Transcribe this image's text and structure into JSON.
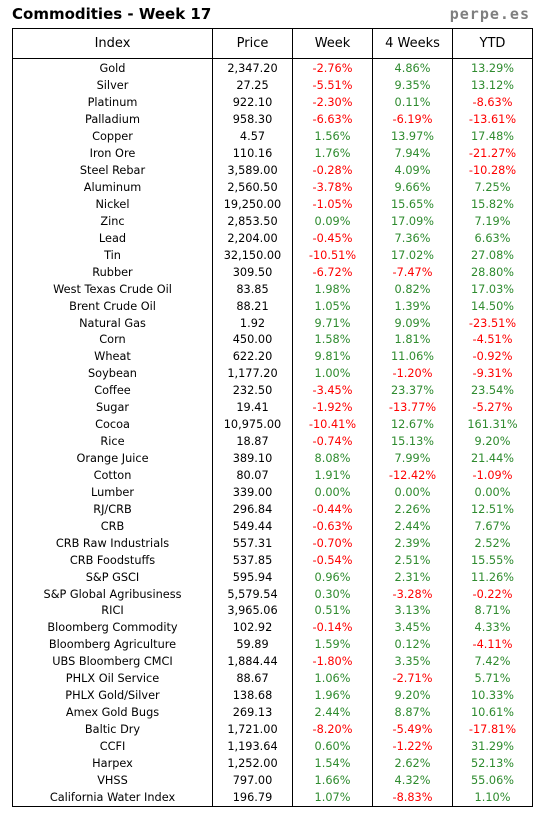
{
  "title": "Commodities - Week 17",
  "brand": "perpe.es",
  "colors": {
    "positive": "#2e8b2e",
    "negative": "#ff0000"
  },
  "headers": [
    "Index",
    "Price",
    "Week",
    "4 Weeks",
    "YTD"
  ],
  "rows": [
    [
      "Gold",
      "2,347.20",
      "-2.76%",
      "4.86%",
      "13.29%"
    ],
    [
      "Silver",
      "27.25",
      "-5.51%",
      "9.35%",
      "13.12%"
    ],
    [
      "Platinum",
      "922.10",
      "-2.30%",
      "0.11%",
      "-8.63%"
    ],
    [
      "Palladium",
      "958.30",
      "-6.63%",
      "-6.19%",
      "-13.61%"
    ],
    [
      "Copper",
      "4.57",
      "1.56%",
      "13.97%",
      "17.48%"
    ],
    [
      "Iron Ore",
      "110.16",
      "1.76%",
      "7.94%",
      "-21.27%"
    ],
    [
      "Steel Rebar",
      "3,589.00",
      "-0.28%",
      "4.09%",
      "-10.28%"
    ],
    [
      "Aluminum",
      "2,560.50",
      "-3.78%",
      "9.66%",
      "7.25%"
    ],
    [
      "Nickel",
      "19,250.00",
      "-1.05%",
      "15.65%",
      "15.82%"
    ],
    [
      "Zinc",
      "2,853.50",
      "0.09%",
      "17.09%",
      "7.19%"
    ],
    [
      "Lead",
      "2,204.00",
      "-0.45%",
      "7.36%",
      "6.63%"
    ],
    [
      "Tin",
      "32,150.00",
      "-10.51%",
      "17.02%",
      "27.08%"
    ],
    [
      "Rubber",
      "309.50",
      "-6.72%",
      "-7.47%",
      "28.80%"
    ],
    [
      "West Texas Crude Oil",
      "83.85",
      "1.98%",
      "0.82%",
      "17.03%"
    ],
    [
      "Brent Crude Oil",
      "88.21",
      "1.05%",
      "1.39%",
      "14.50%"
    ],
    [
      "Natural Gas",
      "1.92",
      "9.71%",
      "9.09%",
      "-23.51%"
    ],
    [
      "Corn",
      "450.00",
      "1.58%",
      "1.81%",
      "-4.51%"
    ],
    [
      "Wheat",
      "622.20",
      "9.81%",
      "11.06%",
      "-0.92%"
    ],
    [
      "Soybean",
      "1,177.20",
      "1.00%",
      "-1.20%",
      "-9.31%"
    ],
    [
      "Coffee",
      "232.50",
      "-3.45%",
      "23.37%",
      "23.54%"
    ],
    [
      "Sugar",
      "19.41",
      "-1.92%",
      "-13.77%",
      "-5.27%"
    ],
    [
      "Cocoa",
      "10,975.00",
      "-10.41%",
      "12.67%",
      "161.31%"
    ],
    [
      "Rice",
      "18.87",
      "-0.74%",
      "15.13%",
      "9.20%"
    ],
    [
      "Orange Juice",
      "389.10",
      "8.08%",
      "7.99%",
      "21.44%"
    ],
    [
      "Cotton",
      "80.07",
      "1.91%",
      "-12.42%",
      "-1.09%"
    ],
    [
      "Lumber",
      "339.00",
      "0.00%",
      "0.00%",
      "0.00%"
    ],
    [
      "RJ/CRB",
      "296.84",
      "-0.44%",
      "2.26%",
      "12.51%"
    ],
    [
      "CRB",
      "549.44",
      "-0.63%",
      "2.44%",
      "7.67%"
    ],
    [
      "CRB Raw Industrials",
      "557.31",
      "-0.70%",
      "2.39%",
      "2.52%"
    ],
    [
      "CRB Foodstuffs",
      "537.85",
      "-0.54%",
      "2.51%",
      "15.55%"
    ],
    [
      "S&P GSCI",
      "595.94",
      "0.96%",
      "2.31%",
      "11.26%"
    ],
    [
      "S&P Global Agribusiness",
      "5,579.54",
      "0.30%",
      "-3.28%",
      "-0.22%"
    ],
    [
      "RICI",
      "3,965.06",
      "0.51%",
      "3.13%",
      "8.71%"
    ],
    [
      "Bloomberg Commodity",
      "102.92",
      "-0.14%",
      "3.45%",
      "4.33%"
    ],
    [
      "Bloomberg Agriculture",
      "59.89",
      "1.59%",
      "0.12%",
      "-4.11%"
    ],
    [
      "UBS Bloomberg CMCI",
      "1,884.44",
      "-1.80%",
      "3.35%",
      "7.42%"
    ],
    [
      "PHLX Oil Service",
      "88.67",
      "1.06%",
      "-2.71%",
      "5.71%"
    ],
    [
      "PHLX Gold/Silver",
      "138.68",
      "1.96%",
      "9.20%",
      "10.33%"
    ],
    [
      "Amex Gold Bugs",
      "269.13",
      "2.44%",
      "8.87%",
      "10.61%"
    ],
    [
      "Baltic Dry",
      "1,721.00",
      "-8.20%",
      "-5.49%",
      "-17.81%"
    ],
    [
      "CCFI",
      "1,193.64",
      "0.60%",
      "-1.22%",
      "31.29%"
    ],
    [
      "Harpex",
      "1,252.00",
      "1.54%",
      "2.62%",
      "52.13%"
    ],
    [
      "VHSS",
      "797.00",
      "1.66%",
      "4.32%",
      "55.06%"
    ],
    [
      "California Water Index",
      "196.79",
      "1.07%",
      "-8.83%",
      "1.10%"
    ]
  ]
}
